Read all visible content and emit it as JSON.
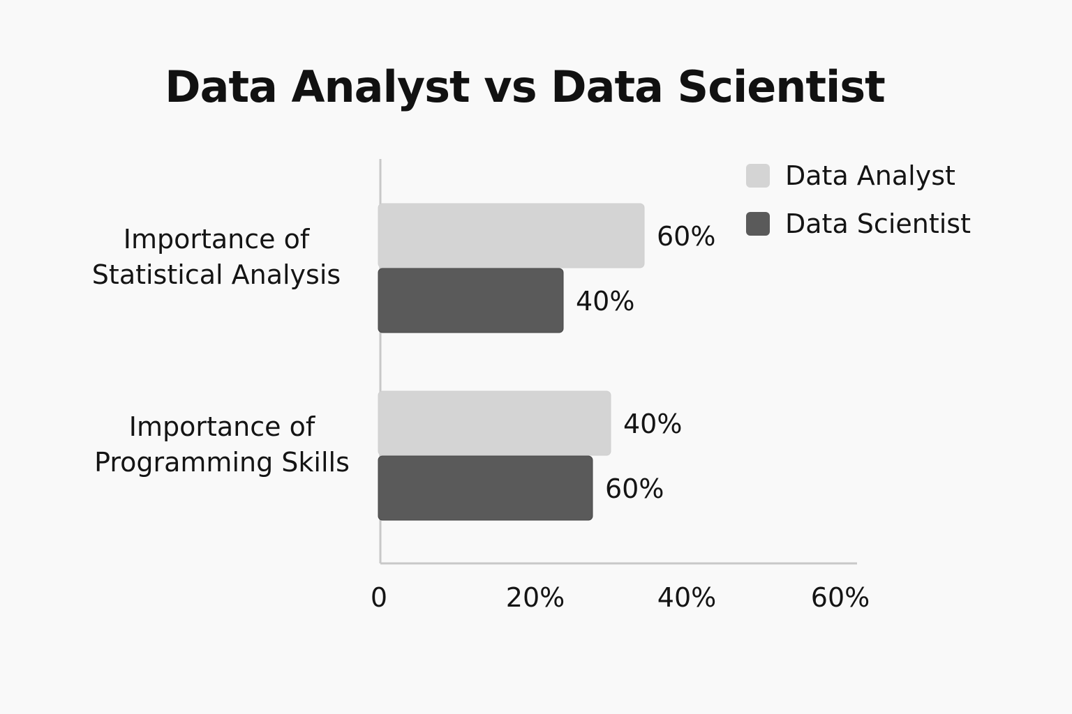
{
  "chart_data": {
    "type": "bar",
    "orientation": "horizontal",
    "title": "Data Analyst vs Data Scientist",
    "categories": [
      "Importance of\nStatistical Analysis",
      "Importance of\nProgramming Skills"
    ],
    "series": [
      {
        "name": "Data Analyst",
        "values": [
          60,
          40
        ],
        "value_labels": [
          "60%",
          "40%"
        ],
        "color": "#d4d4d4"
      },
      {
        "name": "Data Scientist",
        "values": [
          40,
          60
        ],
        "value_labels": [
          "40%",
          "60%"
        ],
        "color": "#5a5a5a"
      }
    ],
    "x_ticks": [
      0,
      20,
      40,
      60
    ],
    "x_tick_labels": [
      "0",
      "20%",
      "40%",
      "60%"
    ],
    "xlim": [
      0,
      60
    ],
    "xlabel": "",
    "ylabel": "",
    "grid": false,
    "legend_position": "top-right"
  }
}
